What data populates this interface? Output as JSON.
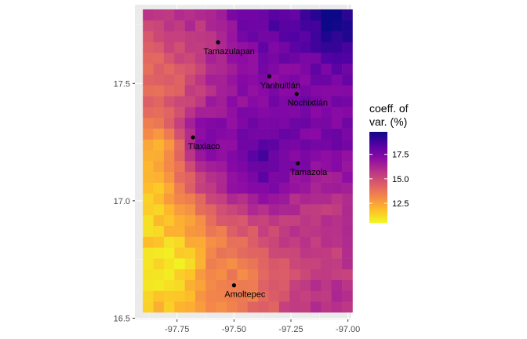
{
  "chart_data": {
    "type": "heatmap",
    "title": "",
    "xlabel": "",
    "ylabel": "",
    "xlim": [
      -97.935,
      -96.985
    ],
    "ylim": [
      16.495,
      17.835
    ],
    "x_ticks": [
      -97.75,
      -97.5,
      -97.25,
      -97.0
    ],
    "x_tick_labels": [
      "-97.75",
      "-97.50",
      "-97.25",
      "-97.00"
    ],
    "y_ticks": [
      16.5,
      17.0,
      17.5
    ],
    "y_tick_labels": [
      "16.5",
      "17.0",
      "17.5"
    ],
    "grid": true,
    "grid_extent": {
      "x_min": -97.9,
      "x_max": -96.98,
      "y_min": 16.525,
      "y_max": 17.815
    },
    "grid_ncols": 20,
    "grid_nrows": 28,
    "legend": {
      "title_lines": [
        "coeff. of",
        "var. (%)"
      ],
      "ticks": [
        12.5,
        15.0,
        17.5
      ],
      "tick_labels": [
        "12.5",
        "15.0",
        "17.5"
      ],
      "range": [
        10.5,
        19.8
      ],
      "placement": "right"
    },
    "colors": {
      "panel_bg": "#ebebeb",
      "grid_major": "#ffffff",
      "grid_minor": "#f5f5f5",
      "point": "#000000",
      "scale": [
        "#0d0887",
        "#5302a3",
        "#8b0aa5",
        "#b83289",
        "#db5c68",
        "#f48849",
        "#febd2a",
        "#f0f921"
      ]
    },
    "locations": [
      {
        "name": "Tamazulapan",
        "lon": -97.57,
        "lat": 17.675
      },
      {
        "name": "Yanhuitlán",
        "lon": -97.345,
        "lat": 17.53
      },
      {
        "name": "Nochixtlán",
        "lon": -97.225,
        "lat": 17.455
      },
      {
        "name": "Tlaxiaco",
        "lon": -97.68,
        "lat": 17.27
      },
      {
        "name": "Tamazola",
        "lon": -97.22,
        "lat": 17.16
      },
      {
        "name": "Amoltepec",
        "lon": -97.5,
        "lat": 16.64
      }
    ],
    "centers": [
      {
        "lon": -97.92,
        "lat": 16.98,
        "v": 10.8
      },
      {
        "lon": -97.78,
        "lat": 16.72,
        "v": 10.8
      },
      {
        "lon": -97.85,
        "lat": 17.2,
        "v": 12.0
      },
      {
        "lon": -97.7,
        "lat": 17.78,
        "v": 15.8
      },
      {
        "lon": -97.05,
        "lat": 17.8,
        "v": 19.8
      },
      {
        "lon": -97.35,
        "lat": 17.8,
        "v": 18.4
      },
      {
        "lon": -97.38,
        "lat": 17.18,
        "v": 18.6
      },
      {
        "lon": -97.6,
        "lat": 17.25,
        "v": 17.6
      },
      {
        "lon": -97.05,
        "lat": 17.3,
        "v": 17.6
      },
      {
        "lon": -97.05,
        "lat": 16.55,
        "v": 15.8
      },
      {
        "lon": -97.15,
        "lat": 16.9,
        "v": 15.5
      },
      {
        "lon": -97.5,
        "lat": 16.7,
        "v": 13.4
      },
      {
        "lon": -97.85,
        "lat": 17.55,
        "v": 14.0
      },
      {
        "lon": -97.3,
        "lat": 17.5,
        "v": 17.4
      }
    ]
  }
}
